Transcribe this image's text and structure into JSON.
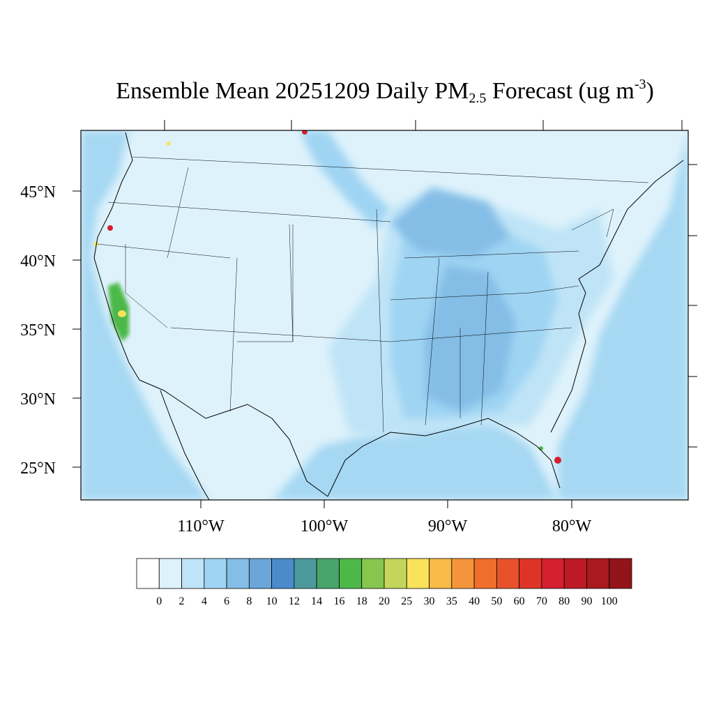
{
  "title": {
    "main": "Ensemble Mean 20251209 Daily PM",
    "subscript": "2.5",
    "rest": " Forecast (ug m",
    "superscript": "-3",
    "close": ")"
  },
  "map": {
    "lat_labels": [
      "45°N",
      "40°N",
      "35°N",
      "30°N",
      "25°N"
    ],
    "lon_labels": [
      "110°W",
      "100°W",
      "90°W",
      "80°W"
    ],
    "colors": {
      "base": "#def2fb",
      "light": "#bfe4f7",
      "mid": "#9fd4f3",
      "medium": "#84bde6",
      "strong": "#6aa6da",
      "ocean": "#a6d8f3",
      "green": "#4cb848",
      "yellow": "#f8e35a",
      "red": "#d42030"
    }
  },
  "colorbar": {
    "labels": [
      "0",
      "2",
      "4",
      "6",
      "8",
      "10",
      "12",
      "14",
      "16",
      "18",
      "20",
      "25",
      "30",
      "35",
      "40",
      "50",
      "60",
      "70",
      "80",
      "90",
      "100"
    ],
    "colors": [
      "#ffffff",
      "#def2fb",
      "#bfe4f7",
      "#9fd4f3",
      "#84bde6",
      "#6aa6da",
      "#4a8ccb",
      "#4c9a9c",
      "#48a56b",
      "#4cb848",
      "#86c54e",
      "#c3d65b",
      "#f8e35a",
      "#f8bb48",
      "#f5953b",
      "#f06e2c",
      "#e8522b",
      "#de3427",
      "#d42030",
      "#bc1a27",
      "#a81a1f",
      "#931418"
    ]
  }
}
